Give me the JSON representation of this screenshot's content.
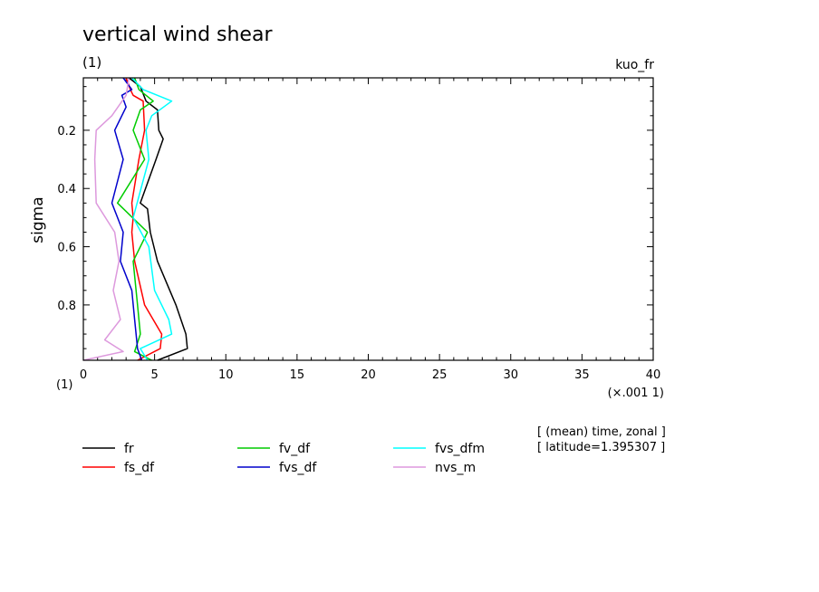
{
  "chart_data": {
    "type": "line",
    "title": "vertical wind shear",
    "subtitle_left": "(1)",
    "subtitle_right": "kuo_fr",
    "ylabel": "sigma",
    "y_unit": "(1)",
    "x_unit": "(×.001 1)",
    "xlim": [
      0,
      40
    ],
    "ylim": [
      0.02,
      0.99
    ],
    "y_inverted": true,
    "x_ticks": [
      0,
      5,
      10,
      15,
      20,
      25,
      30,
      35,
      40
    ],
    "y_ticks": [
      0.2,
      0.4,
      0.6,
      0.8
    ],
    "annotations": [
      "[ (mean) time, zonal ]",
      "[ latitude=1.395307 ]"
    ],
    "legend_position": "below",
    "series": [
      {
        "name": "fr",
        "color": "#000000",
        "points": [
          [
            3.2,
            0.02
          ],
          [
            4.0,
            0.05
          ],
          [
            4.4,
            0.1
          ],
          [
            5.2,
            0.13
          ],
          [
            5.3,
            0.2
          ],
          [
            5.6,
            0.23
          ],
          [
            5.1,
            0.3
          ],
          [
            4.0,
            0.45
          ],
          [
            4.5,
            0.47
          ],
          [
            4.7,
            0.55
          ],
          [
            5.2,
            0.65
          ],
          [
            6.5,
            0.8
          ],
          [
            7.2,
            0.9
          ],
          [
            7.3,
            0.95
          ],
          [
            5.2,
            0.99
          ]
        ]
      },
      {
        "name": "fs_df",
        "color": "#ff0000",
        "points": [
          [
            3.0,
            0.02
          ],
          [
            3.3,
            0.06
          ],
          [
            3.5,
            0.08
          ],
          [
            4.2,
            0.1
          ],
          [
            4.3,
            0.2
          ],
          [
            3.9,
            0.3
          ],
          [
            3.4,
            0.45
          ],
          [
            3.5,
            0.5
          ],
          [
            3.4,
            0.55
          ],
          [
            3.6,
            0.65
          ],
          [
            4.3,
            0.8
          ],
          [
            5.5,
            0.9
          ],
          [
            5.4,
            0.95
          ],
          [
            3.8,
            0.99
          ]
        ]
      },
      {
        "name": "fv_df",
        "color": "#00cc00",
        "points": [
          [
            3.6,
            0.02
          ],
          [
            3.9,
            0.06
          ],
          [
            4.9,
            0.1
          ],
          [
            4.0,
            0.13
          ],
          [
            3.5,
            0.2
          ],
          [
            4.3,
            0.3
          ],
          [
            2.4,
            0.45
          ],
          [
            4.5,
            0.55
          ],
          [
            3.5,
            0.65
          ],
          [
            3.8,
            0.8
          ],
          [
            4.0,
            0.9
          ],
          [
            3.6,
            0.96
          ],
          [
            4.8,
            0.99
          ]
        ]
      },
      {
        "name": "fvs_df",
        "color": "#0000cc",
        "points": [
          [
            2.8,
            0.02
          ],
          [
            3.4,
            0.06
          ],
          [
            2.7,
            0.08
          ],
          [
            3.0,
            0.12
          ],
          [
            2.2,
            0.2
          ],
          [
            2.8,
            0.3
          ],
          [
            2.0,
            0.45
          ],
          [
            2.8,
            0.55
          ],
          [
            2.6,
            0.65
          ],
          [
            3.4,
            0.75
          ],
          [
            3.6,
            0.85
          ],
          [
            3.8,
            0.95
          ],
          [
            4.1,
            0.99
          ]
        ]
      },
      {
        "name": "fvs_dfm",
        "color": "#00ffff",
        "points": [
          [
            3.4,
            0.02
          ],
          [
            4.2,
            0.06
          ],
          [
            6.2,
            0.1
          ],
          [
            4.8,
            0.15
          ],
          [
            4.4,
            0.2
          ],
          [
            4.6,
            0.3
          ],
          [
            3.5,
            0.5
          ],
          [
            4.6,
            0.6
          ],
          [
            5.0,
            0.75
          ],
          [
            6.0,
            0.85
          ],
          [
            6.2,
            0.9
          ],
          [
            4.0,
            0.95
          ],
          [
            4.5,
            0.99
          ]
        ]
      },
      {
        "name": "nvs_m",
        "color": "#dd99dd",
        "points": [
          [
            3.2,
            0.02
          ],
          [
            3.0,
            0.08
          ],
          [
            2.0,
            0.15
          ],
          [
            0.9,
            0.2
          ],
          [
            0.8,
            0.3
          ],
          [
            0.9,
            0.45
          ],
          [
            2.2,
            0.55
          ],
          [
            2.5,
            0.65
          ],
          [
            2.1,
            0.75
          ],
          [
            2.6,
            0.85
          ],
          [
            1.5,
            0.92
          ],
          [
            2.8,
            0.96
          ],
          [
            0.0,
            0.99
          ]
        ]
      }
    ]
  }
}
